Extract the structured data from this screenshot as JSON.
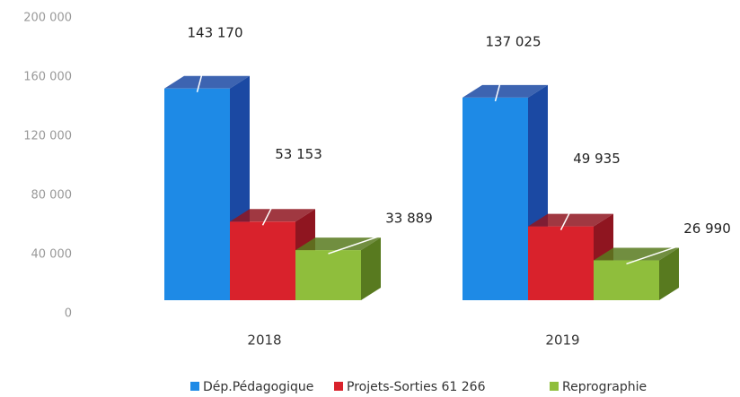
{
  "chart_data": {
    "type": "bar3d",
    "categories": [
      "2018",
      "2019"
    ],
    "series": [
      {
        "name": "Dép.Pédagogique",
        "color": "#1e8ae6",
        "side_color": "#1b49a3",
        "values": [
          143170,
          137025
        ],
        "value_labels": [
          "143 170",
          "137 025"
        ]
      },
      {
        "name": "Projets-Sorties 61 266",
        "color": "#d9222c",
        "side_color": "#8f1520",
        "values": [
          53153,
          49935
        ],
        "value_labels": [
          "53 153",
          "49 935"
        ]
      },
      {
        "name": "Reprographie",
        "color": "#8fbe3c",
        "side_color": "#587a1f",
        "values": [
          33889,
          26990
        ],
        "value_labels": [
          "33 889",
          "26 990"
        ]
      }
    ],
    "ylim": [
      0,
      200000
    ],
    "yticks": [
      0,
      {
        "value": 40000,
        "label": "40 000"
      },
      {
        "value": 80000,
        "label": "80 000"
      },
      {
        "value": 120000,
        "label": "120 000"
      },
      {
        "value": 160000,
        "label": "160 000"
      },
      {
        "value": 200000,
        "label": "200 000"
      }
    ],
    "legend": "bottom"
  }
}
